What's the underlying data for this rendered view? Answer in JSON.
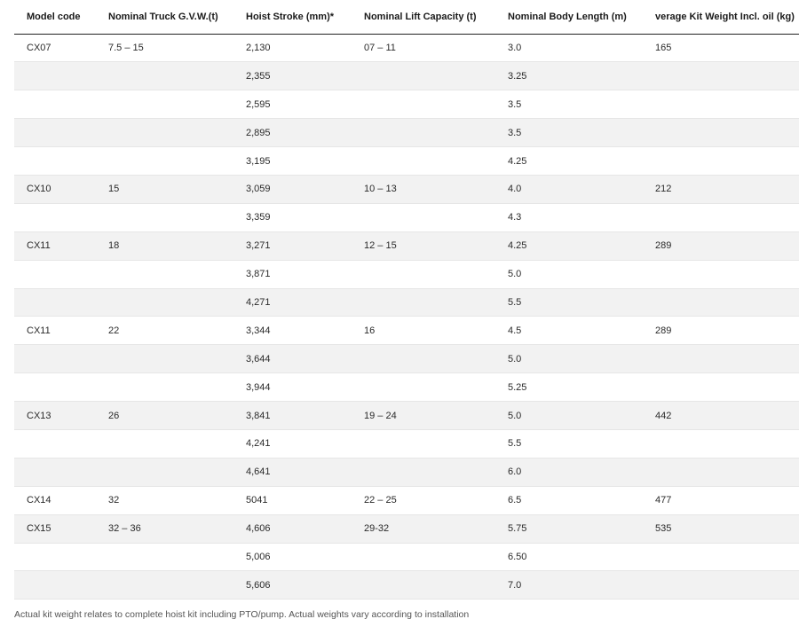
{
  "table": {
    "headers": [
      "Model code",
      "Nominal Truck G.V.W.(t)",
      "Hoist Stroke (mm)*",
      "Nominal Lift Capacity (t)",
      "Nominal Body Length (m)",
      "verage Kit Weight Incl. oil (kg)"
    ],
    "rows": [
      [
        "CX07",
        "7.5 – 15",
        "2,130",
        "07 – 11",
        "3.0",
        "165"
      ],
      [
        "",
        "",
        "2,355",
        "",
        "3.25",
        ""
      ],
      [
        "",
        "",
        "2,595",
        "",
        "3.5",
        ""
      ],
      [
        "",
        "",
        "2,895",
        "",
        "3.5",
        ""
      ],
      [
        "",
        "",
        "3,195",
        "",
        "4.25",
        ""
      ],
      [
        "CX10",
        "15",
        "3,059",
        "10 – 13",
        "4.0",
        "212"
      ],
      [
        "",
        "",
        "3,359",
        "",
        "4.3",
        ""
      ],
      [
        "CX11",
        "18",
        "3,271",
        "12 – 15",
        "4.25",
        "289"
      ],
      [
        "",
        "",
        "3,871",
        "",
        "5.0",
        ""
      ],
      [
        "",
        "",
        "4,271",
        "",
        "5.5",
        ""
      ],
      [
        "CX11",
        "22",
        "3,344",
        "16",
        "4.5",
        "289"
      ],
      [
        "",
        "",
        "3,644",
        "",
        "5.0",
        ""
      ],
      [
        "",
        "",
        "3,944",
        "",
        "5.25",
        ""
      ],
      [
        "CX13",
        "26",
        "3,841",
        "19 – 24",
        "5.0",
        "442"
      ],
      [
        "",
        "",
        "4,241",
        "",
        "5.5",
        ""
      ],
      [
        "",
        "",
        "4,641",
        "",
        "6.0",
        ""
      ],
      [
        "CX14",
        "32",
        "5041",
        "22 – 25",
        "6.5",
        "477"
      ],
      [
        "CX15",
        "32 – 36",
        "4,606",
        "29-32",
        "5.75",
        "535"
      ],
      [
        "",
        "",
        "5,006",
        "",
        "6.50",
        ""
      ],
      [
        "",
        "",
        "5,606",
        "",
        "7.0",
        ""
      ]
    ],
    "shaded_rows": [
      1,
      3,
      5,
      7,
      9,
      11,
      13,
      15,
      17,
      19
    ]
  },
  "footnote": "Actual kit weight relates to complete hoist kit including PTO/pump. Actual weights vary according to installation",
  "colors": {
    "row_shade": "#f2f2f2",
    "header_rule": "#222222",
    "text": "#2a2a2a"
  }
}
